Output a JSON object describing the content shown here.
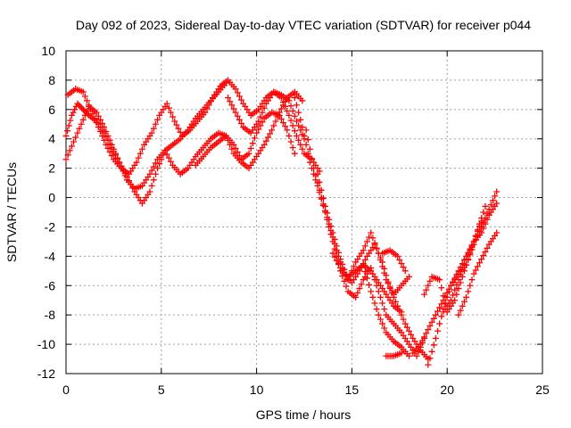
{
  "chart_data": {
    "type": "scatter",
    "title": "Day 092 of 2023, Sidereal Day-to-day VTEC variation (SDTVAR) for receiver p044",
    "xlabel": "GPS time / hours",
    "ylabel": "SDTVAR / TECUs",
    "xlim": [
      0,
      25
    ],
    "ylim": [
      -12,
      10
    ],
    "xticks": [
      0,
      5,
      10,
      15,
      20,
      25
    ],
    "yticks": [
      -12,
      -10,
      -8,
      -6,
      -4,
      -2,
      0,
      2,
      4,
      6,
      8,
      10
    ],
    "grid": true,
    "marker": "+",
    "series_color": "#ff0000",
    "series": [
      {
        "x": [
          0.0,
          0.3,
          0.6,
          0.9,
          1.2,
          1.6,
          2.0,
          2.4,
          2.8,
          3.2,
          3.6,
          4.0,
          4.4,
          4.8,
          5.2,
          5.6,
          6.0,
          6.4,
          6.8,
          7.2,
          7.6,
          8.0,
          8.4
        ],
        "y": [
          4.2,
          5.6,
          6.4,
          6.0,
          5.6,
          5.2,
          4.4,
          3.4,
          2.4,
          1.2,
          0.6,
          0.8,
          1.6,
          2.6,
          3.2,
          3.6,
          4.0,
          4.6,
          5.4,
          6.0,
          6.6,
          7.2,
          7.8
        ]
      },
      {
        "x": [
          0.0,
          0.4,
          0.8,
          1.2,
          1.6,
          2.0,
          2.4,
          2.8,
          3.2,
          3.6,
          4.0,
          4.4,
          4.8,
          5.2,
          5.6,
          6.0,
          6.4,
          6.8,
          7.2,
          7.6,
          8.0,
          8.4,
          8.8,
          9.2,
          9.6,
          10.0,
          10.4,
          10.8,
          11.2,
          11.6,
          12.0
        ],
        "y": [
          2.6,
          3.8,
          5.0,
          6.2,
          5.8,
          4.8,
          3.6,
          2.4,
          1.4,
          0.4,
          -0.4,
          0.4,
          2.0,
          3.2,
          2.2,
          1.6,
          2.0,
          2.8,
          3.4,
          4.0,
          4.4,
          4.2,
          3.6,
          2.6,
          3.0,
          4.4,
          5.4,
          5.8,
          5.6,
          4.6,
          3.0
        ]
      },
      {
        "x": [
          0.1,
          0.5,
          0.9,
          1.3,
          1.7,
          2.1,
          2.5,
          2.9,
          3.3,
          3.7,
          4.1,
          4.5,
          4.9,
          5.3,
          5.7,
          6.1,
          6.5,
          6.9,
          7.3,
          7.7,
          8.1,
          8.5,
          8.9,
          9.3,
          9.7,
          10.1,
          10.5,
          10.9,
          11.3,
          11.7,
          12.1,
          12.5
        ],
        "y": [
          7.0,
          7.4,
          7.2,
          6.0,
          4.8,
          3.6,
          2.6,
          2.0,
          1.6,
          2.4,
          3.6,
          4.4,
          5.6,
          6.4,
          5.2,
          4.2,
          4.6,
          5.2,
          5.8,
          6.8,
          7.6,
          8.0,
          7.4,
          6.4,
          5.6,
          6.0,
          6.8,
          7.2,
          7.0,
          6.6,
          5.2,
          4.0
        ]
      },
      {
        "x": [
          6.8,
          7.2,
          7.6,
          8.0,
          8.4,
          8.8,
          9.2,
          9.6,
          10.0,
          10.4,
          10.8,
          11.2,
          11.6,
          12.0,
          12.4
        ],
        "y": [
          2.2,
          2.8,
          3.4,
          3.8,
          4.2,
          3.0,
          2.4,
          2.0,
          2.8,
          3.6,
          4.6,
          5.8,
          6.8,
          7.2,
          6.6
        ]
      },
      {
        "x": [
          8.5,
          8.9,
          9.3,
          9.7,
          10.1,
          10.5,
          10.9,
          11.3,
          11.7,
          12.1,
          12.5,
          12.9,
          13.3
        ],
        "y": [
          6.8,
          5.8,
          4.8,
          4.4,
          5.2,
          6.4,
          7.2,
          6.8,
          5.6,
          4.2,
          3.0,
          2.6,
          1.8
        ]
      },
      {
        "x": [
          12.0,
          12.4,
          12.8,
          13.2,
          13.6,
          14.0,
          14.4,
          14.8,
          15.2,
          15.6,
          16.0,
          16.4,
          16.8,
          17.2,
          17.6,
          18.0,
          18.4,
          18.8
        ],
        "y": [
          6.8,
          4.8,
          2.4,
          0.8,
          -1.0,
          -3.0,
          -5.0,
          -6.4,
          -6.8,
          -5.6,
          -4.8,
          -6.4,
          -8.0,
          -8.6,
          -9.2,
          -10.0,
          -10.8,
          -9.6
        ]
      },
      {
        "x": [
          12.6,
          13.0,
          13.4,
          13.8,
          14.2,
          14.6,
          15.0,
          15.4,
          15.8,
          16.2,
          16.6,
          17.0,
          17.4,
          17.8,
          18.2,
          18.6,
          19.0
        ],
        "y": [
          4.6,
          2.0,
          0.0,
          -1.8,
          -3.6,
          -5.2,
          -5.8,
          -5.0,
          -4.0,
          -3.2,
          -4.4,
          -6.2,
          -7.4,
          -8.6,
          -9.6,
          -10.4,
          -11.0
        ]
      },
      {
        "x": [
          13.2,
          13.6,
          14.0,
          14.4,
          14.8,
          15.2,
          15.6,
          16.0,
          16.4,
          16.8,
          17.2,
          17.6,
          18.0
        ],
        "y": [
          1.6,
          -0.6,
          -2.4,
          -4.2,
          -5.6,
          -4.4,
          -3.6,
          -2.4,
          -3.8,
          -5.6,
          -6.6,
          -6.0,
          -5.4
        ]
      },
      {
        "x": [
          14.0,
          14.4,
          14.8,
          15.2,
          15.6,
          16.0,
          16.4,
          16.8,
          17.2,
          17.6
        ],
        "y": [
          -3.8,
          -4.8,
          -5.4,
          -5.0,
          -4.6,
          -5.0,
          -5.8,
          -6.6,
          -7.4,
          -7.8
        ]
      },
      {
        "x": [
          15.6,
          16.0,
          16.4,
          16.8,
          17.2,
          17.6,
          18.0
        ],
        "y": [
          -4.6,
          -6.4,
          -8.0,
          -9.2,
          -9.8,
          -10.2,
          -10.8
        ]
      },
      {
        "x": [
          16.6,
          17.0,
          17.4,
          17.8
        ],
        "y": [
          -3.8,
          -3.6,
          -4.0,
          -5.0
        ]
      },
      {
        "x": [
          16.8,
          17.2,
          17.6
        ],
        "y": [
          -10.8,
          -10.8,
          -10.6
        ]
      },
      {
        "x": [
          18.2,
          18.6,
          19.0,
          19.4,
          19.8,
          20.2,
          20.6,
          21.0,
          21.4,
          21.8
        ],
        "y": [
          -10.6,
          -10.0,
          -9.0,
          -8.0,
          -7.0,
          -6.0,
          -5.0,
          -4.0,
          -3.0,
          -1.6
        ]
      },
      {
        "x": [
          19.0,
          19.4,
          19.8,
          20.2,
          20.6,
          21.0,
          21.4,
          21.8,
          22.2,
          22.6
        ],
        "y": [
          -11.4,
          -9.6,
          -7.6,
          -6.0,
          -5.2,
          -4.6,
          -3.2,
          -2.0,
          -0.8,
          0.4
        ]
      },
      {
        "x": [
          18.8,
          19.2,
          19.6,
          20.0,
          20.4,
          20.8,
          21.2,
          21.6,
          22.0
        ],
        "y": [
          -6.6,
          -5.4,
          -5.6,
          -7.8,
          -7.0,
          -5.4,
          -3.8,
          -2.2,
          -0.6
        ]
      },
      {
        "x": [
          19.8,
          20.2,
          20.6,
          21.0,
          21.4,
          21.8,
          22.2,
          22.6
        ],
        "y": [
          -7.8,
          -7.0,
          -5.6,
          -4.2,
          -3.0,
          -2.4,
          -1.2,
          -0.4
        ]
      },
      {
        "x": [
          20.6,
          21.0,
          21.4,
          21.8,
          22.2,
          22.6
        ],
        "y": [
          -8.0,
          -6.8,
          -5.2,
          -4.2,
          -3.2,
          -2.4
        ]
      }
    ]
  }
}
